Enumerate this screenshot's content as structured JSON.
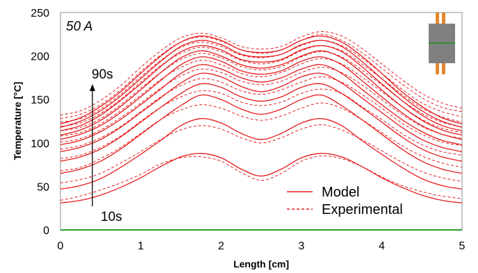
{
  "chart_data": {
    "type": "line",
    "annotation_current": "50 A",
    "xlabel": "Length [cm]",
    "ylabel": "Temperature [°C]",
    "xlim": [
      0,
      5
    ],
    "ylim": [
      0,
      250
    ],
    "x_ticks": [
      "0",
      "1",
      "2",
      "3",
      "4",
      "5"
    ],
    "y_ticks": [
      "0",
      "50",
      "100",
      "150",
      "200",
      "250"
    ],
    "grid": false,
    "legend_position": "bottom-center",
    "legend": [
      {
        "label": "Model",
        "style": "solid"
      },
      {
        "label": "Experimental",
        "style": "dashed"
      }
    ],
    "time_labels": {
      "start": "10s",
      "end": "90s"
    },
    "colors": {
      "series": "#e41a1c",
      "baseline": "#2ca02c",
      "connector": "#e4872f",
      "block": "#808080",
      "block_line": "#2e8b2e"
    },
    "x": [
      0,
      0.25,
      0.5,
      0.75,
      1.0,
      1.25,
      1.5,
      1.75,
      2.0,
      2.25,
      2.5,
      2.75,
      3.0,
      3.25,
      3.5,
      3.75,
      4.0,
      4.25,
      4.5,
      4.75,
      5.0
    ],
    "model_series": [
      {
        "values": [
          31,
          34,
          40,
          49,
          60,
          73,
          84,
          88,
          83,
          70,
          62,
          70,
          83,
          88,
          84,
          73,
          60,
          49,
          40,
          34,
          31
        ]
      },
      {
        "values": [
          47,
          51,
          59,
          72,
          87,
          103,
          120,
          128,
          123,
          111,
          104,
          111,
          123,
          128,
          120,
          103,
          87,
          72,
          59,
          51,
          47
        ]
      },
      {
        "values": [
          65,
          70,
          79,
          93,
          110,
          127,
          143,
          155,
          150,
          139,
          133,
          139,
          150,
          155,
          143,
          127,
          110,
          93,
          79,
          70,
          65
        ]
      },
      {
        "values": [
          79,
          84,
          93,
          107,
          124,
          141,
          157,
          168,
          164,
          153,
          148,
          153,
          164,
          168,
          157,
          141,
          124,
          107,
          93,
          84,
          79
        ]
      },
      {
        "values": [
          90,
          95,
          104,
          118,
          135,
          152,
          169,
          180,
          176,
          165,
          159,
          165,
          176,
          180,
          169,
          152,
          135,
          118,
          104,
          95,
          90
        ]
      },
      {
        "values": [
          98,
          103,
          113,
          127,
          144,
          162,
          180,
          190,
          185,
          175,
          170,
          175,
          185,
          190,
          180,
          162,
          144,
          127,
          113,
          103,
          98
        ]
      },
      {
        "values": [
          104,
          110,
          120,
          135,
          153,
          172,
          190,
          199,
          194,
          183,
          179,
          183,
          194,
          199,
          190,
          172,
          153,
          135,
          120,
          110,
          104
        ]
      },
      {
        "values": [
          109,
          115,
          126,
          142,
          161,
          181,
          198,
          206,
          200,
          190,
          186,
          190,
          200,
          206,
          198,
          181,
          161,
          142,
          126,
          115,
          109
        ]
      },
      {
        "values": [
          114,
          120,
          132,
          149,
          168,
          188,
          205,
          212,
          207,
          196,
          193,
          196,
          207,
          212,
          205,
          188,
          168,
          149,
          132,
          120,
          114
        ]
      },
      {
        "values": [
          118,
          125,
          137,
          154,
          174,
          194,
          211,
          218,
          213,
          202,
          199,
          202,
          213,
          218,
          211,
          194,
          174,
          154,
          137,
          125,
          118
        ]
      },
      {
        "values": [
          122,
          129,
          142,
          159,
          180,
          200,
          216,
          223,
          218,
          207,
          204,
          207,
          218,
          223,
          216,
          200,
          180,
          159,
          142,
          129,
          122
        ]
      }
    ],
    "experimental_series": [
      {
        "values": [
          34,
          39,
          46,
          54,
          64,
          76,
          83,
          84,
          79,
          66,
          57,
          65,
          79,
          85,
          82,
          73,
          61,
          51,
          44,
          39,
          36
        ]
      },
      {
        "values": [
          54,
          58,
          65,
          77,
          90,
          104,
          115,
          120,
          116,
          106,
          100,
          106,
          116,
          121,
          115,
          104,
          91,
          78,
          67,
          60,
          56
        ]
      },
      {
        "values": [
          68,
          72,
          82,
          95,
          111,
          127,
          138,
          144,
          140,
          131,
          126,
          131,
          140,
          146,
          140,
          127,
          112,
          97,
          85,
          77,
          72
        ]
      },
      {
        "values": [
          82,
          86,
          95,
          108,
          125,
          141,
          153,
          160,
          157,
          147,
          143,
          147,
          157,
          162,
          157,
          142,
          127,
          111,
          98,
          90,
          86
        ]
      },
      {
        "values": [
          93,
          97,
          106,
          119,
          136,
          153,
          166,
          174,
          170,
          160,
          156,
          161,
          170,
          176,
          170,
          156,
          140,
          123,
          110,
          101,
          97
        ]
      },
      {
        "values": [
          101,
          105,
          115,
          129,
          146,
          163,
          177,
          185,
          181,
          171,
          167,
          171,
          181,
          187,
          181,
          167,
          150,
          133,
          119,
          110,
          105
        ]
      },
      {
        "values": [
          108,
          112,
          122,
          137,
          155,
          173,
          187,
          195,
          190,
          180,
          176,
          181,
          191,
          197,
          191,
          176,
          159,
          142,
          127,
          117,
          112
        ]
      },
      {
        "values": [
          114,
          118,
          128,
          144,
          163,
          181,
          196,
          203,
          198,
          188,
          184,
          188,
          199,
          205,
          199,
          184,
          167,
          149,
          134,
          124,
          118
        ]
      },
      {
        "values": [
          119,
          123,
          134,
          150,
          170,
          189,
          203,
          210,
          205,
          195,
          191,
          195,
          206,
          212,
          206,
          191,
          174,
          156,
          140,
          130,
          124
        ]
      },
      {
        "values": [
          124,
          128,
          139,
          156,
          176,
          195,
          210,
          216,
          211,
          201,
          198,
          202,
          212,
          218,
          212,
          198,
          180,
          162,
          146,
          136,
          130
        ]
      },
      {
        "values": [
          128,
          133,
          144,
          161,
          182,
          201,
          216,
          222,
          217,
          207,
          203,
          207,
          218,
          225,
          218,
          204,
          186,
          168,
          152,
          141,
          136
        ]
      },
      {
        "values": [
          132,
          137,
          149,
          166,
          187,
          206,
          221,
          226,
          221,
          211,
          208,
          211,
          222,
          228,
          223,
          209,
          191,
          173,
          157,
          146,
          140
        ]
      }
    ]
  }
}
